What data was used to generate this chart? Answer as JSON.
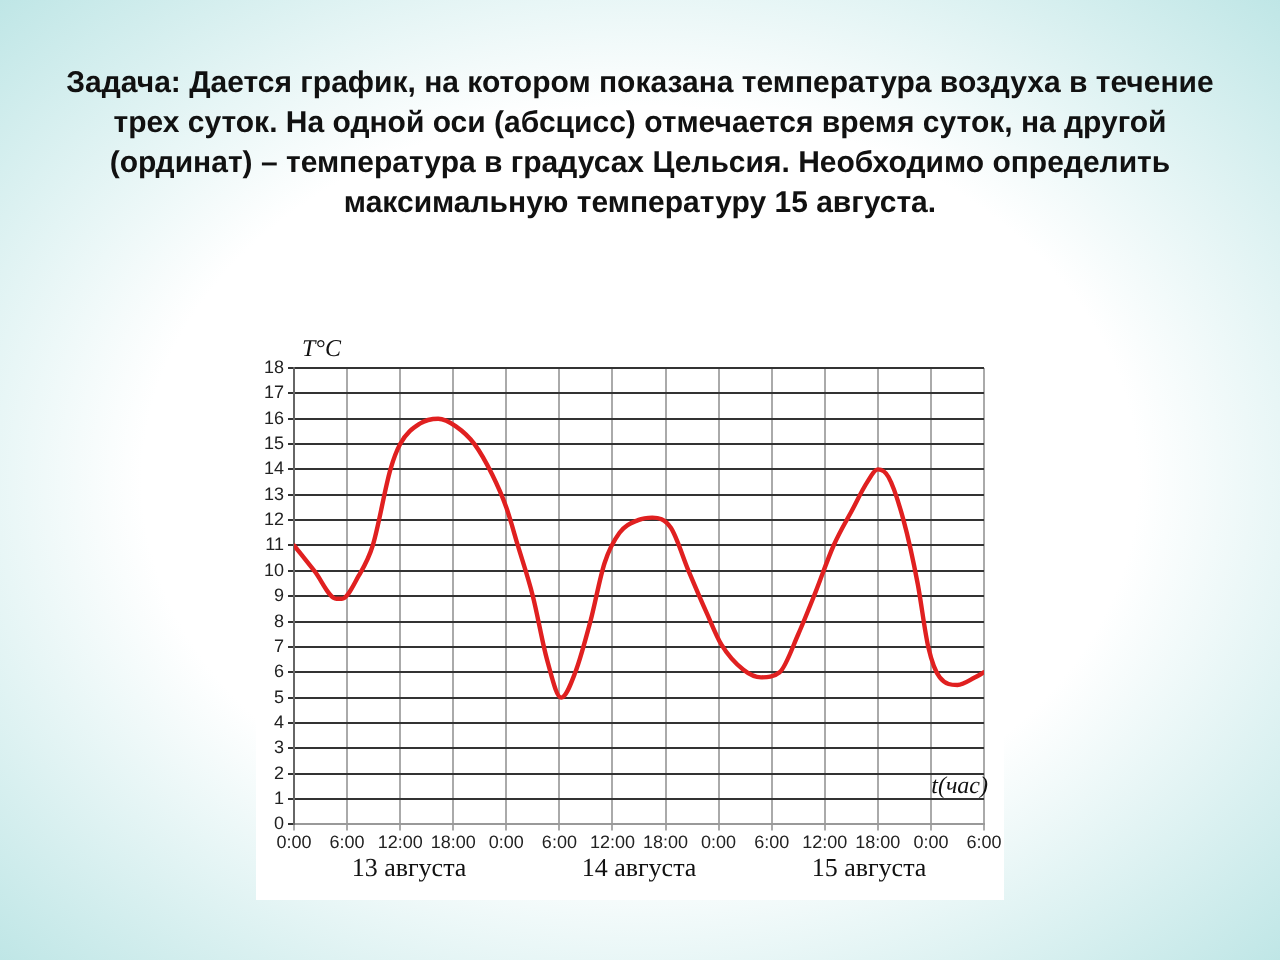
{
  "chart_data": {
    "type": "line",
    "title": "Задача: Дается график, на котором показана температура воздуха в течение трех суток. На одной оси (абсцисс) отмечается время суток, на другой (ординат) – температура в градусах Цельсия. Необходимо определить максимальную температуру 15 августа.",
    "xlabel": "t(час)",
    "ylabel": "T°C",
    "annotations": [
      "13 августа",
      "14 августа",
      "15 августа"
    ],
    "x": [
      "--08-13T00:00",
      "--08-13T02:18",
      "--08-13T04:48",
      "--08-13T05:24",
      "--08-13T07:18",
      "--08-13T08:54",
      "--08-13T10:54",
      "--08-13T12:00",
      "--08-13T14:12",
      "--08-13T16:18",
      "--08-13T18:18",
      "--08-13T20:24",
      "--08-13T22:24",
      "--08-14T00:00",
      "--08-14T01:18",
      "--08-14T03:00",
      "--08-14T04:36",
      "--08-14T06:12",
      "--08-14T07:48",
      "--08-14T09:30",
      "--08-14T11:06",
      "--08-14T12:48",
      "--08-14T14:54",
      "--08-14T16:30",
      "--08-14T18:36",
      "--08-14T20:36",
      "--08-14T22:42",
      "--08-15T00:18",
      "--08-15T02:48",
      "--08-15T04:48",
      "--08-15T06:54",
      "--08-15T09:00",
      "--08-15T11:00",
      "--08-15T13:00",
      "--08-15T15:06",
      "--08-15T16:48",
      "--08-15T18:00",
      "--08-15T19:12",
      "--08-15T20:54",
      "--08-15T22:30",
      "--08-15T23:42",
      "--08-16T01:00",
      "--08-16T03:00",
      "--08-16T05:00",
      "--08-16T06:00"
    ],
    "series": [
      {
        "color": "#e02020",
        "values": [
          11,
          10,
          8.9,
          8.9,
          9.8,
          11,
          14,
          15,
          15.8,
          16,
          15.7,
          15,
          13.8,
          12.5,
          11,
          9,
          6.5,
          5,
          6,
          8,
          10.3,
          11.5,
          12,
          12.1,
          11.7,
          10,
          8.3,
          7.1,
          6.1,
          5.8,
          6,
          7.5,
          9.2,
          11,
          12.4,
          13.5,
          14,
          13.7,
          12,
          9.5,
          7,
          5.8,
          5.5,
          5.8,
          6
        ]
      }
    ],
    "xlim": [
      "--08-13T00:00",
      "--08-16T06:00"
    ],
    "xticks": [
      {
        "value": "--08-13T00:00",
        "label": "0:00"
      },
      {
        "value": "--08-13T06:00",
        "label": "6:00"
      },
      {
        "value": "--08-13T12:00",
        "label": "12:00"
      },
      {
        "value": "--08-13T18:00",
        "label": "18:00"
      },
      {
        "value": "--08-14T00:00",
        "label": "0:00"
      },
      {
        "value": "--08-14T06:00",
        "label": "6:00"
      },
      {
        "value": "--08-14T12:00",
        "label": "12:00"
      },
      {
        "value": "--08-14T18:00",
        "label": "18:00"
      },
      {
        "value": "--08-15T00:00",
        "label": "0:00"
      },
      {
        "value": "--08-15T06:00",
        "label": "6:00"
      },
      {
        "value": "--08-15T12:00",
        "label": "12:00"
      },
      {
        "value": "--08-15T18:00",
        "label": "18:00"
      },
      {
        "value": "--08-16T00:00",
        "label": "0:00"
      },
      {
        "value": "--08-16T06:00",
        "label": "6:00"
      }
    ],
    "ylim": [
      0,
      18
    ],
    "yticks": [
      0,
      1,
      2,
      3,
      4,
      5,
      6,
      7,
      8,
      9,
      10,
      11,
      12,
      13,
      14,
      15,
      16,
      17,
      18
    ],
    "grid": true,
    "legend": false,
    "marker": "none",
    "line_style": "solid"
  }
}
